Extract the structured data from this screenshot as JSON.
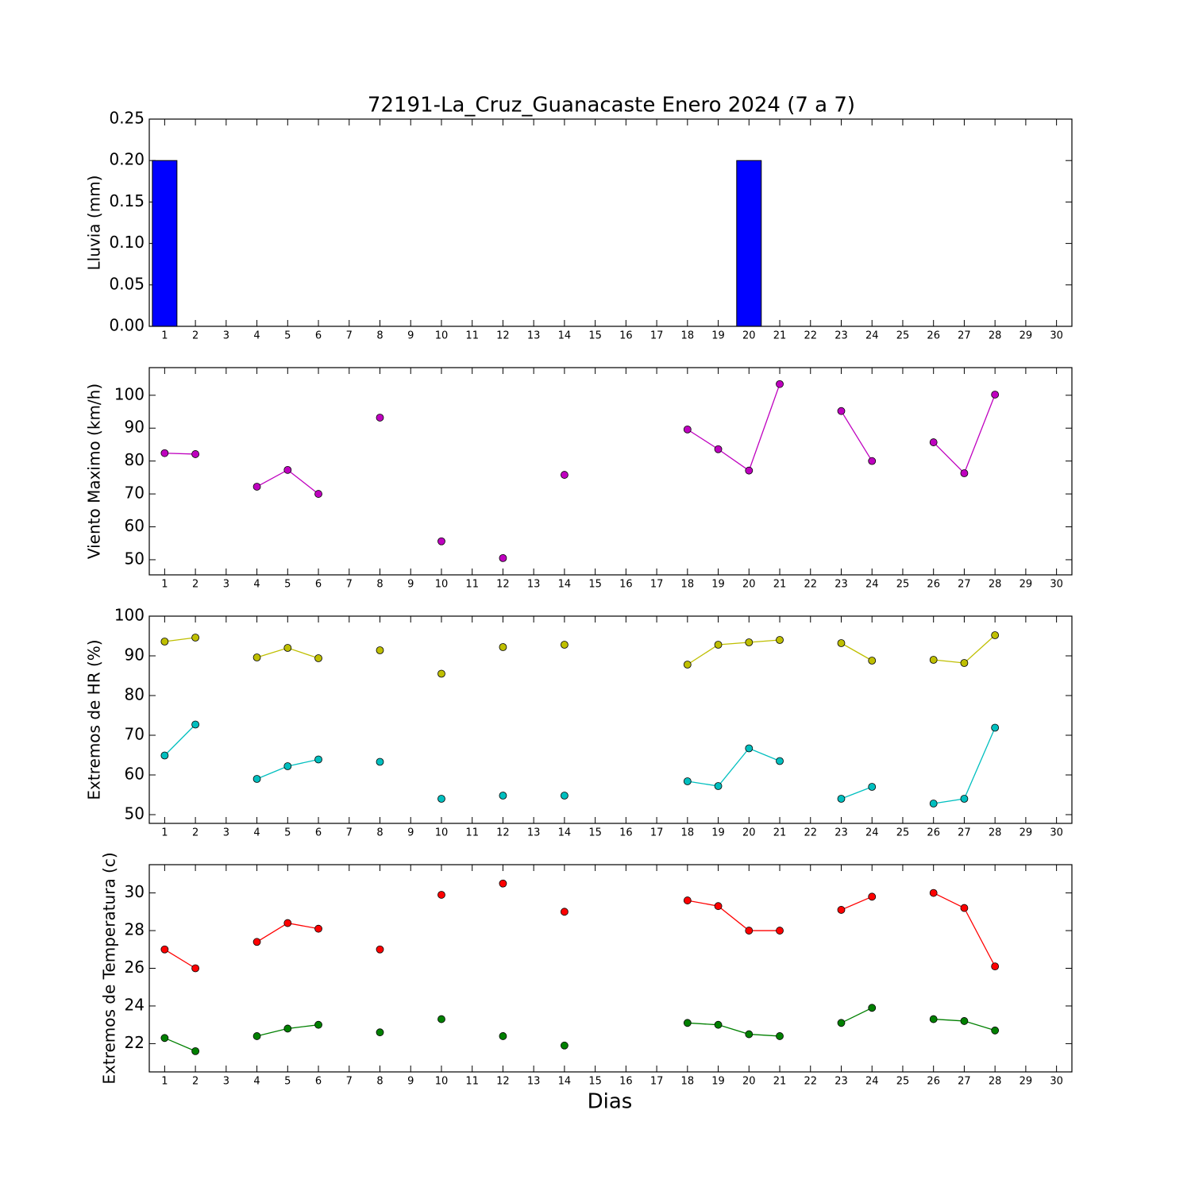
{
  "chart_data": [
    {
      "type": "bar",
      "title": "72191-La_Cruz_Guanacaste Enero 2024  (7 a 7)",
      "y_label": "Lluvia (mm)",
      "x": [
        1,
        2,
        3,
        4,
        5,
        6,
        7,
        8,
        9,
        10,
        11,
        12,
        13,
        14,
        15,
        16,
        17,
        18,
        19,
        20,
        21,
        22,
        23,
        24,
        25,
        26,
        27,
        28,
        29,
        30
      ],
      "values": [
        0.2,
        0,
        null,
        0,
        0,
        0,
        null,
        0,
        null,
        0,
        null,
        0,
        null,
        0,
        null,
        null,
        null,
        0,
        0,
        0.2,
        0,
        null,
        0,
        0,
        null,
        0,
        0,
        0,
        null,
        null
      ],
      "color": "#0000ff",
      "xlim": [
        0.5,
        30.5
      ],
      "ylim": [
        0,
        0.25
      ],
      "yticks": [
        {
          "value": 0,
          "label": "0.00"
        },
        {
          "value": 0.05,
          "label": "0.05"
        },
        {
          "value": 0.1,
          "label": "0.10"
        },
        {
          "value": 0.15,
          "label": "0.15"
        },
        {
          "value": 0.2,
          "label": "0.20"
        },
        {
          "value": 0.25,
          "label": "0.25"
        }
      ]
    },
    {
      "type": "line",
      "y_label": "Viento Maximo (km/h)",
      "x": [
        1,
        2,
        3,
        4,
        5,
        6,
        7,
        8,
        9,
        10,
        11,
        12,
        13,
        14,
        15,
        16,
        17,
        18,
        19,
        20,
        21,
        22,
        23,
        24,
        25,
        26,
        27,
        28,
        29,
        30
      ],
      "series": [
        {
          "color": "#bf00bf",
          "values": [
            82.4,
            82.1,
            null,
            72.2,
            77.3,
            70.0,
            null,
            93.2,
            null,
            55.6,
            null,
            50.5,
            null,
            75.8,
            null,
            null,
            null,
            89.6,
            83.6,
            77.1,
            103.4,
            null,
            95.2,
            80.0,
            null,
            85.7,
            76.3,
            100.2,
            null,
            null
          ]
        }
      ],
      "xlim": [
        0.5,
        30.5
      ],
      "ylim": [
        45.4,
        108.4
      ],
      "yticks": [
        50,
        60,
        70,
        80,
        90,
        100
      ]
    },
    {
      "type": "line",
      "y_label": "Extremos de HR (%)",
      "x": [
        1,
        2,
        3,
        4,
        5,
        6,
        7,
        8,
        9,
        10,
        11,
        12,
        13,
        14,
        15,
        16,
        17,
        18,
        19,
        20,
        21,
        22,
        23,
        24,
        25,
        26,
        27,
        28,
        29,
        30
      ],
      "series": [
        {
          "color": "#bfbf00",
          "values": [
            93.6,
            94.6,
            null,
            89.6,
            92.0,
            89.4,
            null,
            91.4,
            null,
            85.5,
            null,
            92.2,
            null,
            92.8,
            null,
            null,
            null,
            87.8,
            92.8,
            93.4,
            94.0,
            null,
            93.2,
            88.8,
            null,
            89.0,
            88.2,
            95.2,
            null,
            null
          ]
        },
        {
          "color": "#00bfbf",
          "values": [
            64.9,
            72.7,
            null,
            59.0,
            62.2,
            63.9,
            null,
            63.3,
            null,
            54.0,
            null,
            54.8,
            null,
            54.8,
            null,
            null,
            null,
            58.4,
            57.2,
            66.7,
            63.5,
            null,
            54.0,
            57.0,
            null,
            52.8,
            54.0,
            71.9,
            null,
            null
          ]
        }
      ],
      "xlim": [
        0.5,
        30.5
      ],
      "ylim": [
        47.8,
        100
      ],
      "yticks": [
        50,
        60,
        70,
        80,
        90,
        100
      ]
    },
    {
      "type": "line",
      "y_label": "Extremos de Temperatura (c)",
      "x_label": "Dias",
      "x": [
        1,
        2,
        3,
        4,
        5,
        6,
        7,
        8,
        9,
        10,
        11,
        12,
        13,
        14,
        15,
        16,
        17,
        18,
        19,
        20,
        21,
        22,
        23,
        24,
        25,
        26,
        27,
        28,
        29,
        30
      ],
      "series": [
        {
          "color": "#ff0000",
          "values": [
            27.0,
            26.0,
            null,
            27.4,
            28.4,
            28.1,
            null,
            27.0,
            null,
            29.9,
            null,
            30.5,
            null,
            29.0,
            null,
            null,
            null,
            29.6,
            29.3,
            28.0,
            28.0,
            null,
            29.1,
            29.8,
            null,
            30.0,
            29.2,
            26.1,
            null,
            null
          ]
        },
        {
          "color": "#008000",
          "values": [
            22.3,
            21.6,
            null,
            22.4,
            22.8,
            23.0,
            null,
            22.6,
            null,
            23.3,
            null,
            22.4,
            null,
            21.9,
            null,
            null,
            null,
            23.1,
            23.0,
            22.5,
            22.4,
            null,
            23.1,
            23.9,
            null,
            23.3,
            23.2,
            22.7,
            null,
            null
          ]
        }
      ],
      "xlim": [
        0.5,
        30.5
      ],
      "ylim": [
        20.5,
        31.5
      ],
      "yticks": [
        22,
        24,
        26,
        28,
        30
      ]
    }
  ]
}
